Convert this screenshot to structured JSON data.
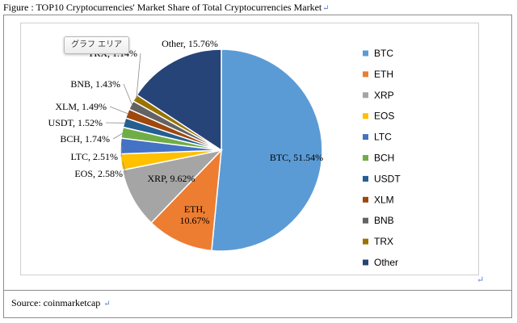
{
  "document": {
    "caption": "Figure : TOP10 Cryptocurrencies' Market Share of Total Cryptocurrencies Market",
    "source": "Source: coinmarketcap",
    "tooltip": "グラフ エリア"
  },
  "chart_data": {
    "type": "pie",
    "categories": [
      "BTC",
      "ETH",
      "XRP",
      "EOS",
      "LTC",
      "BCH",
      "USDT",
      "XLM",
      "BNB",
      "TRX",
      "Other"
    ],
    "values": [
      51.54,
      10.67,
      9.62,
      2.58,
      2.51,
      1.74,
      1.52,
      1.49,
      1.43,
      1.14,
      15.76
    ],
    "labels": [
      "BTC, 51.54%",
      "ETH,\n10.67%",
      "XRP, 9.62%",
      "EOS, 2.58%",
      "LTC, 2.51%",
      "BCH, 1.74%",
      "USDT, 1.52%",
      "XLM, 1.49%",
      "BNB, 1.43%",
      "TRX, 1.14%",
      "Other, 15.76%"
    ],
    "colors": [
      "#5B9BD5",
      "#ED7D31",
      "#A5A5A5",
      "#FFC000",
      "#4472C4",
      "#70AD47",
      "#255E91",
      "#9E480E",
      "#636363",
      "#997300",
      "#264478"
    ],
    "legend_position": "right"
  }
}
